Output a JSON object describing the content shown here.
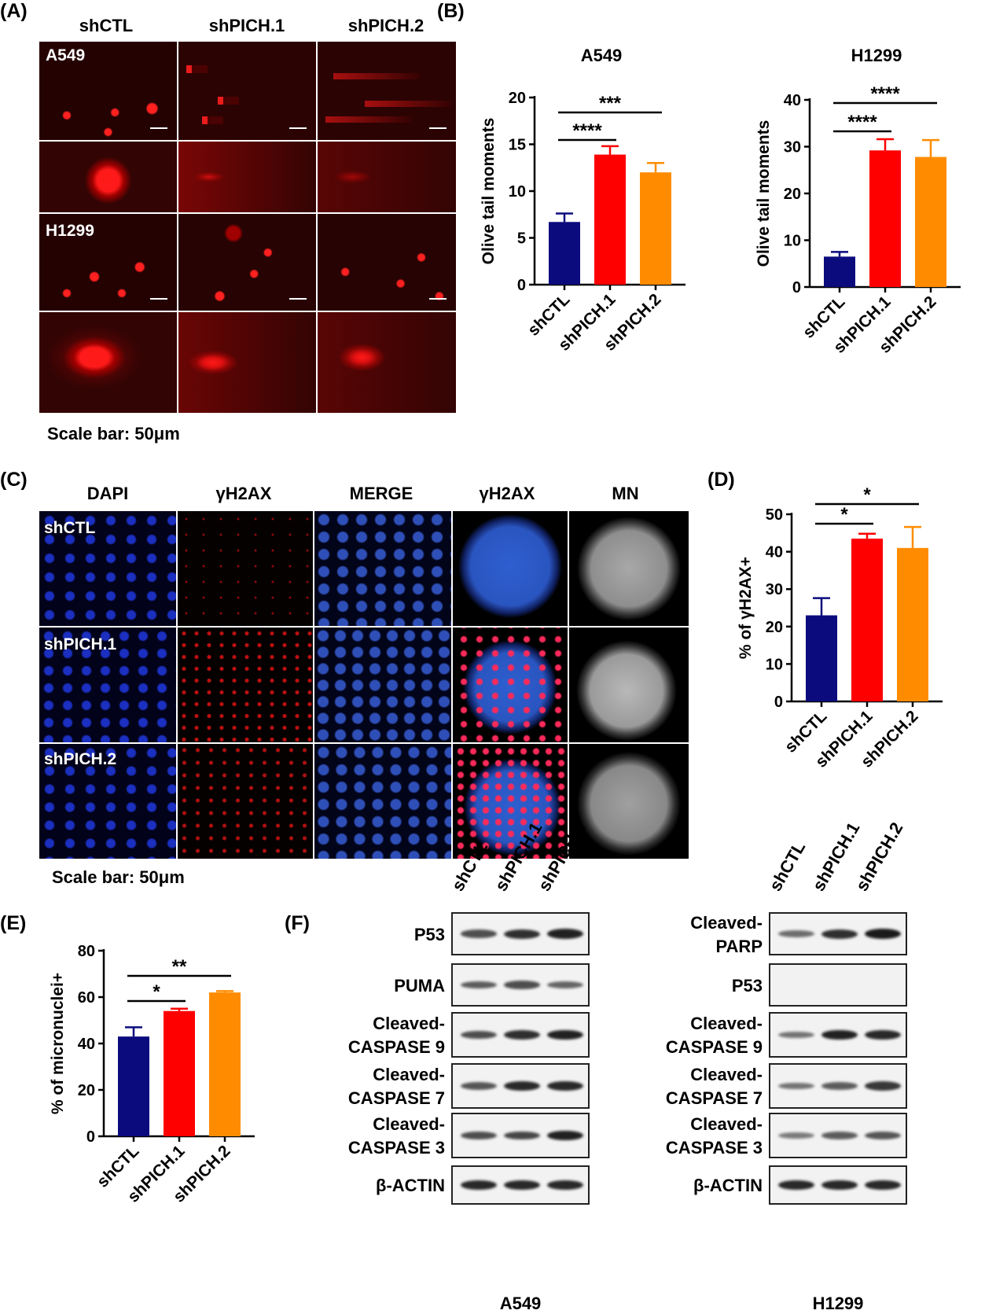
{
  "panels": {
    "A": "(A)",
    "B": "(B)",
    "C": "(C)",
    "D": "(D)",
    "E": "(E)",
    "F": "(F)"
  },
  "panelA": {
    "columns": [
      "shCTL",
      "shPICH.1",
      "shPICH.2"
    ],
    "rows": [
      "A549",
      "H1299"
    ],
    "scale_bar": "Scale bar: 50μm"
  },
  "panelC": {
    "columns": [
      "DAPI",
      "γH2AX",
      "MERGE",
      "γH2AX",
      "MN"
    ],
    "rows": [
      "shCTL",
      "shPICH.1",
      "shPICH.2"
    ],
    "scale_bar": "Scale bar: 50μm"
  },
  "panelF": {
    "lanes": [
      "shCTL",
      "shPICH.1",
      "shPICH.2"
    ],
    "left_cell": "A549",
    "right_cell": "H1299",
    "left_blots": [
      "P53",
      "PUMA",
      "Cleaved-\nCASPASE 9",
      "Cleaved-\nCASPASE 7",
      "Cleaved-\nCASPASE 3",
      "β-ACTIN"
    ],
    "right_blots": [
      "Cleaved-\nPARP",
      "P53",
      "Cleaved-\nCASPASE 9",
      "Cleaved-\nCASPASE 7",
      "Cleaved-\nCASPASE 3",
      "β-ACTIN"
    ],
    "left_intensity": [
      [
        0.55,
        0.75,
        0.85
      ],
      [
        0.45,
        0.55,
        0.4
      ],
      [
        0.55,
        0.75,
        0.85
      ],
      [
        0.5,
        0.8,
        0.8
      ],
      [
        0.55,
        0.6,
        0.85
      ],
      [
        0.8,
        0.8,
        0.8
      ]
    ],
    "right_intensity": [
      [
        0.35,
        0.75,
        0.9
      ],
      [
        0,
        0,
        0
      ],
      [
        0.3,
        0.85,
        0.8
      ],
      [
        0.3,
        0.45,
        0.7
      ],
      [
        0.25,
        0.45,
        0.5
      ],
      [
        0.8,
        0.8,
        0.8
      ]
    ]
  },
  "chart_data": [
    {
      "id": "B-left",
      "type": "bar",
      "title": "A549",
      "ylabel": "Olive tail moments",
      "categories": [
        "shCTL",
        "shPICH.1",
        "shPICH.2"
      ],
      "values": [
        6.7,
        13.9,
        12.0
      ],
      "errors": [
        0.9,
        0.9,
        1.0
      ],
      "ylim": [
        0,
        20
      ],
      "yticks": [
        0,
        5,
        10,
        15,
        20
      ],
      "colors": [
        "#0b0b7d",
        "#fe0000",
        "#ff8c00"
      ],
      "significance": [
        {
          "from": 0,
          "to": 1,
          "label": "****"
        },
        {
          "from": 0,
          "to": 2,
          "label": "***"
        }
      ]
    },
    {
      "id": "B-right",
      "type": "bar",
      "title": "H1299",
      "ylabel": "Olive tail moments",
      "categories": [
        "shCTL",
        "shPICH.1",
        "shPICH.2"
      ],
      "values": [
        6.5,
        29.2,
        27.8
      ],
      "errors": [
        1.0,
        2.4,
        3.6
      ],
      "ylim": [
        0,
        40
      ],
      "yticks": [
        0,
        10,
        20,
        30,
        40
      ],
      "colors": [
        "#0b0b7d",
        "#fe0000",
        "#ff8c00"
      ],
      "significance": [
        {
          "from": 0,
          "to": 1,
          "label": "****"
        },
        {
          "from": 0,
          "to": 2,
          "label": "****"
        }
      ]
    },
    {
      "id": "D",
      "type": "bar",
      "title": "",
      "ylabel": "% of γH2AX+",
      "categories": [
        "shCTL",
        "shPICH.1",
        "shPICH.2"
      ],
      "values": [
        23.0,
        43.5,
        41.0
      ],
      "errors": [
        4.6,
        1.3,
        5.6
      ],
      "ylim": [
        0,
        50
      ],
      "yticks": [
        0,
        10,
        20,
        30,
        40,
        50
      ],
      "colors": [
        "#0b0b7d",
        "#fe0000",
        "#ff8c00"
      ],
      "significance": [
        {
          "from": 0,
          "to": 1,
          "label": "*"
        },
        {
          "from": 0,
          "to": 2,
          "label": "*"
        }
      ]
    },
    {
      "id": "E",
      "type": "bar",
      "title": "",
      "ylabel": "% of micronuclei+",
      "categories": [
        "shCTL",
        "shPICH.1",
        "shPICH.2"
      ],
      "values": [
        43.0,
        54.0,
        62.0
      ],
      "errors": [
        4.0,
        1.0,
        0.6
      ],
      "ylim": [
        0,
        80
      ],
      "yticks": [
        0,
        20,
        40,
        60,
        80
      ],
      "colors": [
        "#0b0b7d",
        "#fe0000",
        "#ff8c00"
      ],
      "significance": [
        {
          "from": 0,
          "to": 1,
          "label": "*"
        },
        {
          "from": 0,
          "to": 2,
          "label": "**"
        }
      ]
    }
  ]
}
